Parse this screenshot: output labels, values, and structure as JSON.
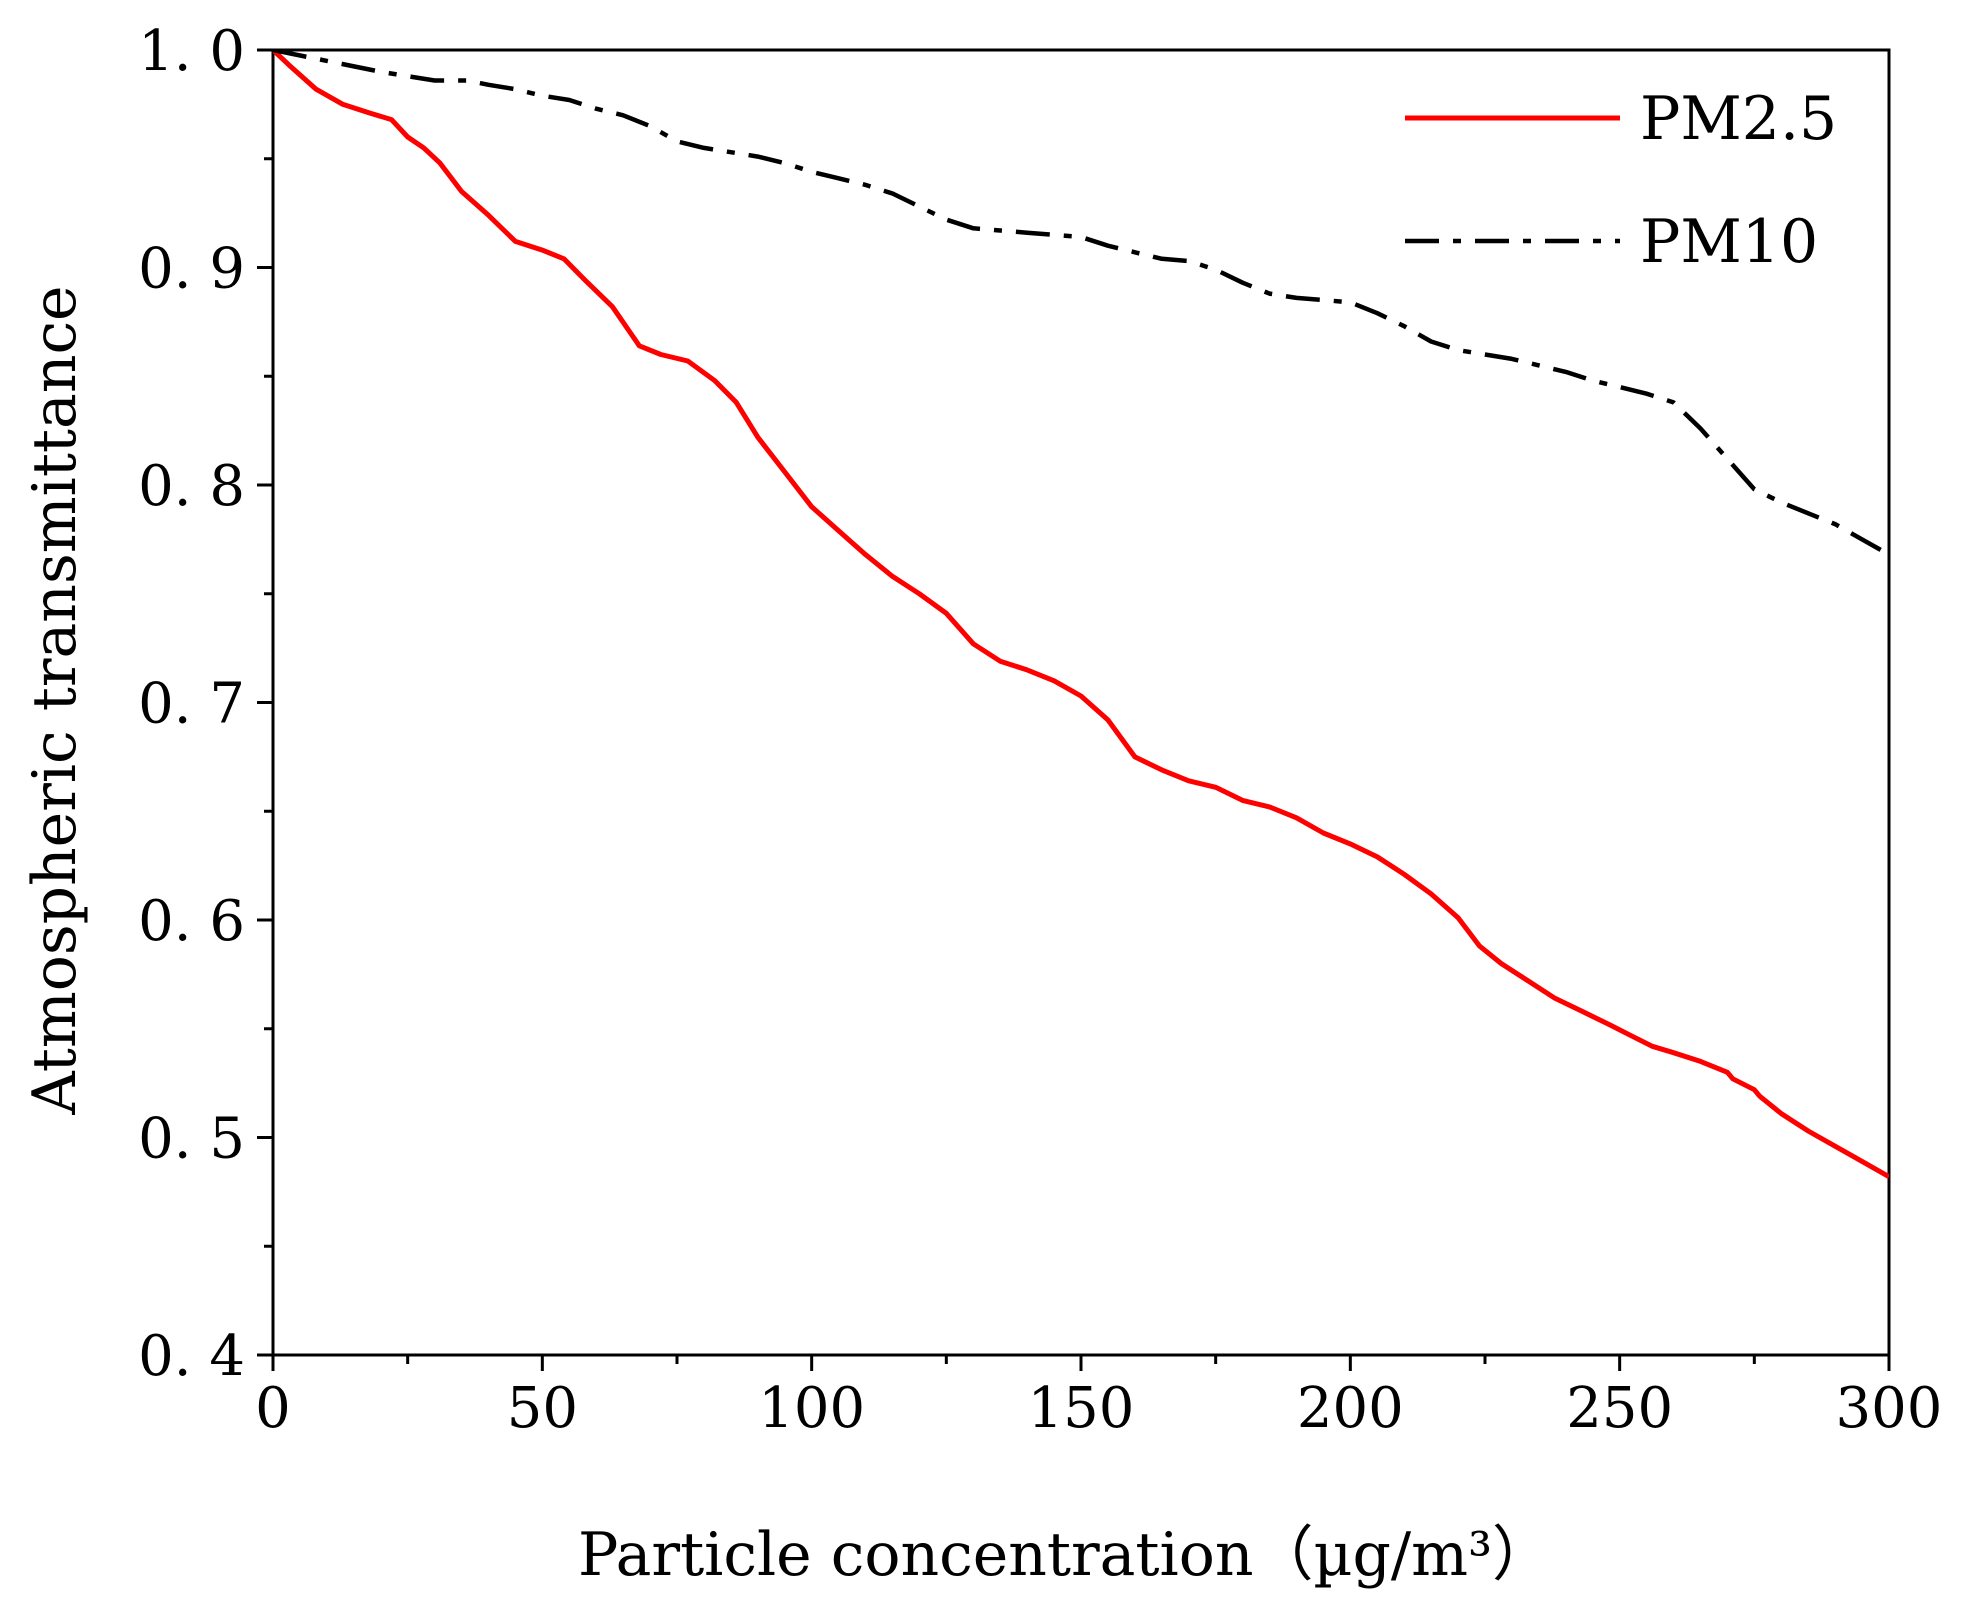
{
  "chart_data": {
    "type": "line",
    "title": "",
    "xlabel": "Particle concentration（µg/m³）",
    "ylabel": "Atmospheric transmittance",
    "xlim": [
      0,
      300
    ],
    "ylim": [
      0.4,
      1.0
    ],
    "x_ticks": [
      0,
      50,
      100,
      150,
      200,
      250,
      300
    ],
    "x_tick_labels": [
      "0",
      "50",
      "100",
      "150",
      "200",
      "250",
      "300"
    ],
    "y_ticks": [
      0.4,
      0.5,
      0.6,
      0.7,
      0.8,
      0.9,
      1.0
    ],
    "y_tick_labels": [
      "0. 4",
      "0. 5",
      "0. 6",
      "0. 7",
      "0. 8",
      "0. 9",
      "1. 0"
    ],
    "grid": false,
    "legend_position": "top-right",
    "series": [
      {
        "name": "PM2.5",
        "color": "#ff0000",
        "style": "solid",
        "x": [
          0,
          3,
          8,
          13,
          18,
          22,
          25,
          28,
          31,
          35,
          40,
          45,
          50,
          54,
          58,
          63,
          68,
          72,
          77,
          82,
          86,
          90,
          95,
          100,
          105,
          110,
          115,
          120,
          125,
          130,
          135,
          140,
          145,
          150,
          155,
          160,
          165,
          170,
          175,
          180,
          185,
          190,
          195,
          200,
          205,
          210,
          215,
          220,
          224,
          228,
          233,
          238,
          243,
          248,
          252,
          256,
          260,
          265,
          270,
          271,
          275,
          276,
          280,
          285,
          290,
          295,
          300
        ],
        "y": [
          1.0,
          0.993,
          0.982,
          0.975,
          0.971,
          0.968,
          0.96,
          0.955,
          0.948,
          0.935,
          0.924,
          0.912,
          0.908,
          0.904,
          0.894,
          0.882,
          0.864,
          0.86,
          0.857,
          0.848,
          0.838,
          0.822,
          0.806,
          0.79,
          0.779,
          0.768,
          0.758,
          0.75,
          0.741,
          0.727,
          0.719,
          0.715,
          0.71,
          0.703,
          0.692,
          0.675,
          0.669,
          0.664,
          0.661,
          0.655,
          0.652,
          0.647,
          0.64,
          0.635,
          0.629,
          0.621,
          0.612,
          0.601,
          0.588,
          0.58,
          0.572,
          0.564,
          0.558,
          0.552,
          0.547,
          0.542,
          0.539,
          0.535,
          0.53,
          0.527,
          0.522,
          0.519,
          0.511,
          0.503,
          0.496,
          0.489,
          0.482
        ]
      },
      {
        "name": "PM10",
        "color": "#000000",
        "style": "dashdot",
        "x": [
          0,
          10,
          20,
          30,
          36,
          40,
          45,
          50,
          55,
          60,
          65,
          70,
          75,
          80,
          85,
          90,
          95,
          100,
          105,
          110,
          115,
          120,
          125,
          130,
          135,
          140,
          145,
          150,
          155,
          160,
          165,
          170,
          175,
          180,
          185,
          190,
          195,
          200,
          205,
          210,
          215,
          220,
          225,
          230,
          235,
          240,
          245,
          250,
          255,
          260,
          265,
          270,
          275,
          280,
          285,
          290,
          295,
          300
        ],
        "y": [
          1.0,
          0.995,
          0.99,
          0.986,
          0.986,
          0.984,
          0.982,
          0.979,
          0.977,
          0.973,
          0.97,
          0.965,
          0.958,
          0.955,
          0.953,
          0.951,
          0.948,
          0.944,
          0.941,
          0.938,
          0.934,
          0.928,
          0.922,
          0.918,
          0.917,
          0.916,
          0.915,
          0.914,
          0.91,
          0.907,
          0.904,
          0.903,
          0.899,
          0.893,
          0.888,
          0.886,
          0.885,
          0.884,
          0.879,
          0.873,
          0.866,
          0.862,
          0.86,
          0.858,
          0.855,
          0.852,
          0.848,
          0.845,
          0.842,
          0.838,
          0.826,
          0.812,
          0.798,
          0.792,
          0.787,
          0.782,
          0.775,
          0.768
        ]
      }
    ]
  }
}
